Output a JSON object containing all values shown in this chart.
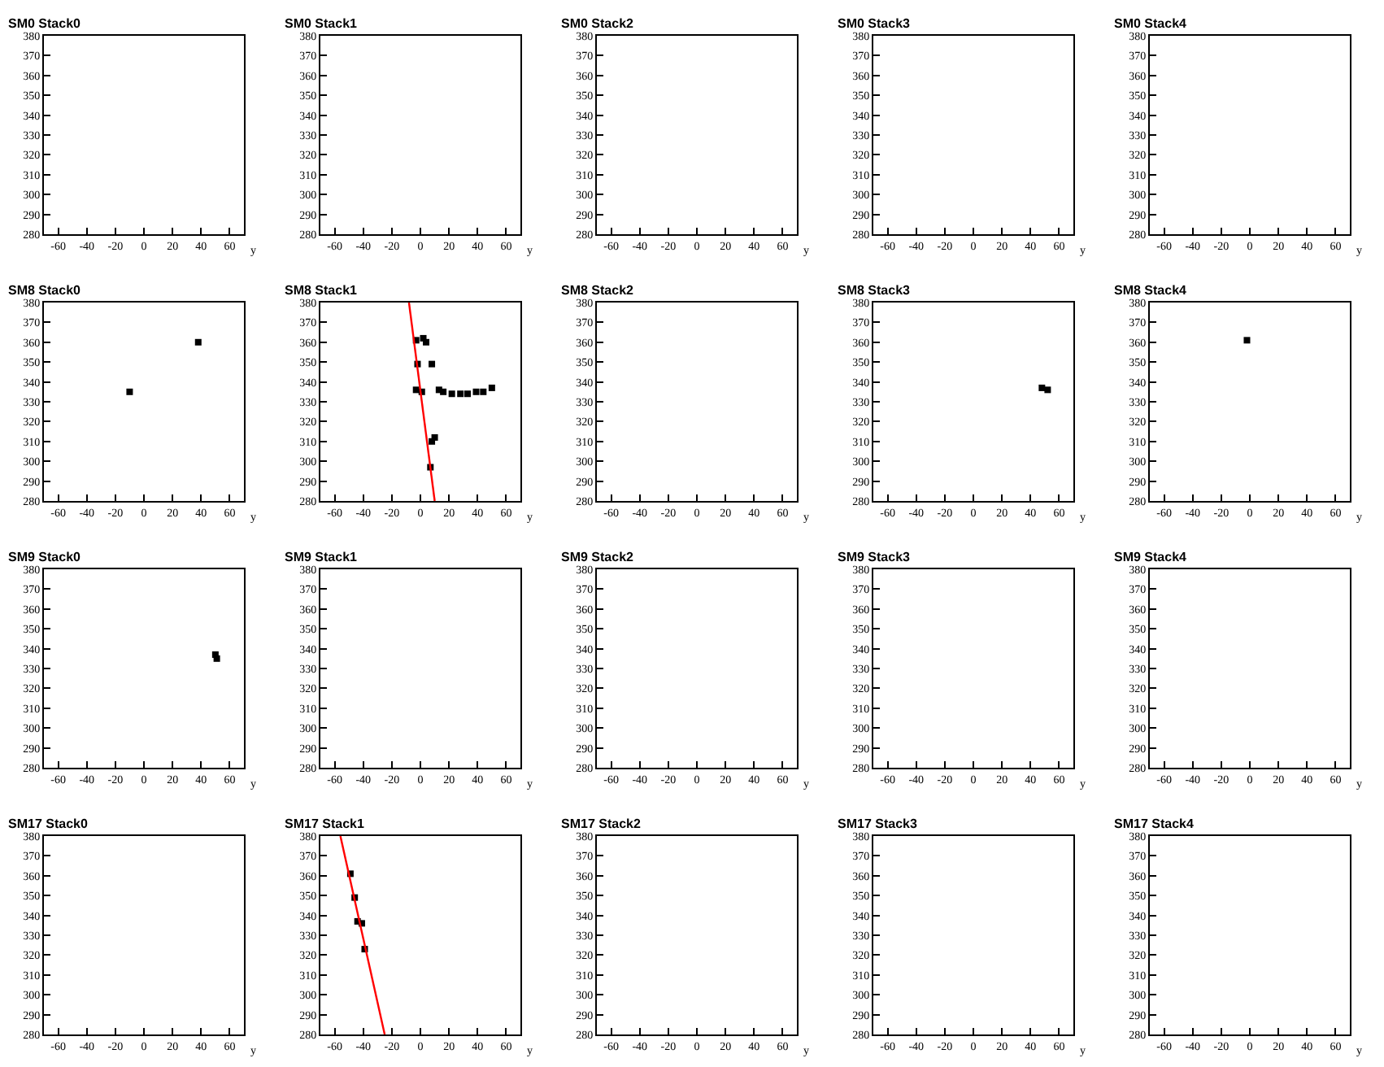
{
  "chart_data": [
    {
      "type": "scatter",
      "title": "SM0 Stack0",
      "xlabel": "y",
      "xlim": [
        -70,
        70
      ],
      "xticks": [
        -60,
        -40,
        -20,
        0,
        20,
        40,
        60
      ],
      "ylim": [
        280,
        380
      ],
      "yticks": [
        280,
        290,
        300,
        310,
        320,
        330,
        340,
        350,
        360,
        370,
        380
      ]
    },
    {
      "type": "scatter",
      "title": "SM0 Stack1",
      "xlabel": "y",
      "xlim": [
        -70,
        70
      ],
      "xticks": [
        -60,
        -40,
        -20,
        0,
        20,
        40,
        60
      ],
      "ylim": [
        280,
        380
      ],
      "yticks": [
        280,
        290,
        300,
        310,
        320,
        330,
        340,
        350,
        360,
        370,
        380
      ]
    },
    {
      "type": "scatter",
      "title": "SM0 Stack2",
      "xlabel": "y",
      "xlim": [
        -70,
        70
      ],
      "xticks": [
        -60,
        -40,
        -20,
        0,
        20,
        40,
        60
      ],
      "ylim": [
        280,
        380
      ],
      "yticks": [
        280,
        290,
        300,
        310,
        320,
        330,
        340,
        350,
        360,
        370,
        380
      ]
    },
    {
      "type": "scatter",
      "title": "SM0 Stack3",
      "xlabel": "y",
      "xlim": [
        -70,
        70
      ],
      "xticks": [
        -60,
        -40,
        -20,
        0,
        20,
        40,
        60
      ],
      "ylim": [
        280,
        380
      ],
      "yticks": [
        280,
        290,
        300,
        310,
        320,
        330,
        340,
        350,
        360,
        370,
        380
      ]
    },
    {
      "type": "scatter",
      "title": "SM0 Stack4",
      "xlabel": "y",
      "xlim": [
        -70,
        70
      ],
      "xticks": [
        -60,
        -40,
        -20,
        0,
        20,
        40,
        60
      ],
      "ylim": [
        280,
        380
      ],
      "yticks": [
        280,
        290,
        300,
        310,
        320,
        330,
        340,
        350,
        360,
        370,
        380
      ]
    },
    {
      "type": "scatter",
      "title": "SM8 Stack0",
      "xlabel": "y",
      "xlim": [
        -70,
        70
      ],
      "xticks": [
        -60,
        -40,
        -20,
        0,
        20,
        40,
        60
      ],
      "ylim": [
        280,
        380
      ],
      "yticks": [
        280,
        290,
        300,
        310,
        320,
        330,
        340,
        350,
        360,
        370,
        380
      ],
      "marker": "square",
      "series": [
        {
          "color": "#000000",
          "x": [
            -10,
            38
          ],
          "values": [
            335,
            360
          ]
        }
      ]
    },
    {
      "type": "scatter",
      "title": "SM8 Stack1",
      "xlabel": "y",
      "xlim": [
        -70,
        70
      ],
      "xticks": [
        -60,
        -40,
        -20,
        0,
        20,
        40,
        60
      ],
      "ylim": [
        280,
        380
      ],
      "yticks": [
        280,
        290,
        300,
        310,
        320,
        330,
        340,
        350,
        360,
        370,
        380
      ],
      "marker": "square",
      "series": [
        {
          "color": "#000000",
          "x": [
            -3,
            2,
            4,
            -2,
            8,
            -3,
            1,
            13,
            16,
            22,
            28,
            33,
            39,
            44,
            50,
            8,
            10,
            7
          ],
          "values": [
            361,
            362,
            360,
            349,
            349,
            336,
            335,
            336,
            335,
            334,
            334,
            334,
            335,
            335,
            337,
            310,
            312,
            297
          ]
        },
        {
          "type": "line",
          "color": "#ff0000",
          "marker": "none",
          "x": [
            -8,
            10
          ],
          "values": [
            380,
            280
          ]
        }
      ]
    },
    {
      "type": "scatter",
      "title": "SM8 Stack2",
      "xlabel": "y",
      "xlim": [
        -70,
        70
      ],
      "xticks": [
        -60,
        -40,
        -20,
        0,
        20,
        40,
        60
      ],
      "ylim": [
        280,
        380
      ],
      "yticks": [
        280,
        290,
        300,
        310,
        320,
        330,
        340,
        350,
        360,
        370,
        380
      ]
    },
    {
      "type": "scatter",
      "title": "SM8 Stack3",
      "xlabel": "y",
      "xlim": [
        -70,
        70
      ],
      "xticks": [
        -60,
        -40,
        -20,
        0,
        20,
        40,
        60
      ],
      "ylim": [
        280,
        380
      ],
      "yticks": [
        280,
        290,
        300,
        310,
        320,
        330,
        340,
        350,
        360,
        370,
        380
      ],
      "marker": "square",
      "series": [
        {
          "color": "#000000",
          "x": [
            48,
            52
          ],
          "values": [
            337,
            336
          ]
        }
      ]
    },
    {
      "type": "scatter",
      "title": "SM8 Stack4",
      "xlabel": "y",
      "xlim": [
        -70,
        70
      ],
      "xticks": [
        -60,
        -40,
        -20,
        0,
        20,
        40,
        60
      ],
      "ylim": [
        280,
        380
      ],
      "yticks": [
        280,
        290,
        300,
        310,
        320,
        330,
        340,
        350,
        360,
        370,
        380
      ],
      "marker": "square",
      "series": [
        {
          "color": "#000000",
          "x": [
            -2
          ],
          "values": [
            361
          ]
        }
      ]
    },
    {
      "type": "scatter",
      "title": "SM9 Stack0",
      "xlabel": "y",
      "xlim": [
        -70,
        70
      ],
      "xticks": [
        -60,
        -40,
        -20,
        0,
        20,
        40,
        60
      ],
      "ylim": [
        280,
        380
      ],
      "yticks": [
        280,
        290,
        300,
        310,
        320,
        330,
        340,
        350,
        360,
        370,
        380
      ],
      "marker": "square",
      "series": [
        {
          "color": "#000000",
          "x": [
            50,
            51
          ],
          "values": [
            337,
            335
          ]
        }
      ]
    },
    {
      "type": "scatter",
      "title": "SM9 Stack1",
      "xlabel": "y",
      "xlim": [
        -70,
        70
      ],
      "xticks": [
        -60,
        -40,
        -20,
        0,
        20,
        40,
        60
      ],
      "ylim": [
        280,
        380
      ],
      "yticks": [
        280,
        290,
        300,
        310,
        320,
        330,
        340,
        350,
        360,
        370,
        380
      ]
    },
    {
      "type": "scatter",
      "title": "SM9 Stack2",
      "xlabel": "y",
      "xlim": [
        -70,
        70
      ],
      "xticks": [
        -60,
        -40,
        -20,
        0,
        20,
        40,
        60
      ],
      "ylim": [
        280,
        380
      ],
      "yticks": [
        280,
        290,
        300,
        310,
        320,
        330,
        340,
        350,
        360,
        370,
        380
      ]
    },
    {
      "type": "scatter",
      "title": "SM9 Stack3",
      "xlabel": "y",
      "xlim": [
        -70,
        70
      ],
      "xticks": [
        -60,
        -40,
        -20,
        0,
        20,
        40,
        60
      ],
      "ylim": [
        280,
        380
      ],
      "yticks": [
        280,
        290,
        300,
        310,
        320,
        330,
        340,
        350,
        360,
        370,
        380
      ]
    },
    {
      "type": "scatter",
      "title": "SM9 Stack4",
      "xlabel": "y",
      "xlim": [
        -70,
        70
      ],
      "xticks": [
        -60,
        -40,
        -20,
        0,
        20,
        40,
        60
      ],
      "ylim": [
        280,
        380
      ],
      "yticks": [
        280,
        290,
        300,
        310,
        320,
        330,
        340,
        350,
        360,
        370,
        380
      ]
    },
    {
      "type": "scatter",
      "title": "SM17 Stack0",
      "xlabel": "y",
      "xlim": [
        -70,
        70
      ],
      "xticks": [
        -60,
        -40,
        -20,
        0,
        20,
        40,
        60
      ],
      "ylim": [
        280,
        380
      ],
      "yticks": [
        280,
        290,
        300,
        310,
        320,
        330,
        340,
        350,
        360,
        370,
        380
      ]
    },
    {
      "type": "scatter",
      "title": "SM17 Stack1",
      "xlabel": "y",
      "xlim": [
        -70,
        70
      ],
      "xticks": [
        -60,
        -40,
        -20,
        0,
        20,
        40,
        60
      ],
      "ylim": [
        280,
        380
      ],
      "yticks": [
        280,
        290,
        300,
        310,
        320,
        330,
        340,
        350,
        360,
        370,
        380
      ],
      "marker": "square",
      "series": [
        {
          "color": "#000000",
          "x": [
            -49,
            -46,
            -44,
            -41,
            -39
          ],
          "values": [
            361,
            349,
            337,
            336,
            323
          ]
        },
        {
          "type": "line",
          "color": "#ff0000",
          "marker": "none",
          "x": [
            -56,
            -25
          ],
          "values": [
            380,
            280
          ]
        }
      ]
    },
    {
      "type": "scatter",
      "title": "SM17 Stack2",
      "xlabel": "y",
      "xlim": [
        -70,
        70
      ],
      "xticks": [
        -60,
        -40,
        -20,
        0,
        20,
        40,
        60
      ],
      "ylim": [
        280,
        380
      ],
      "yticks": [
        280,
        290,
        300,
        310,
        320,
        330,
        340,
        350,
        360,
        370,
        380
      ]
    },
    {
      "type": "scatter",
      "title": "SM17 Stack3",
      "xlabel": "y",
      "xlim": [
        -70,
        70
      ],
      "xticks": [
        -60,
        -40,
        -20,
        0,
        20,
        40,
        60
      ],
      "ylim": [
        280,
        380
      ],
      "yticks": [
        280,
        290,
        300,
        310,
        320,
        330,
        340,
        350,
        360,
        370,
        380
      ]
    },
    {
      "type": "scatter",
      "title": "SM17 Stack4",
      "xlabel": "y",
      "xlim": [
        -70,
        70
      ],
      "xticks": [
        -60,
        -40,
        -20,
        0,
        20,
        40,
        60
      ],
      "ylim": [
        280,
        380
      ],
      "yticks": [
        280,
        290,
        300,
        310,
        320,
        330,
        340,
        350,
        360,
        370,
        380
      ]
    }
  ]
}
